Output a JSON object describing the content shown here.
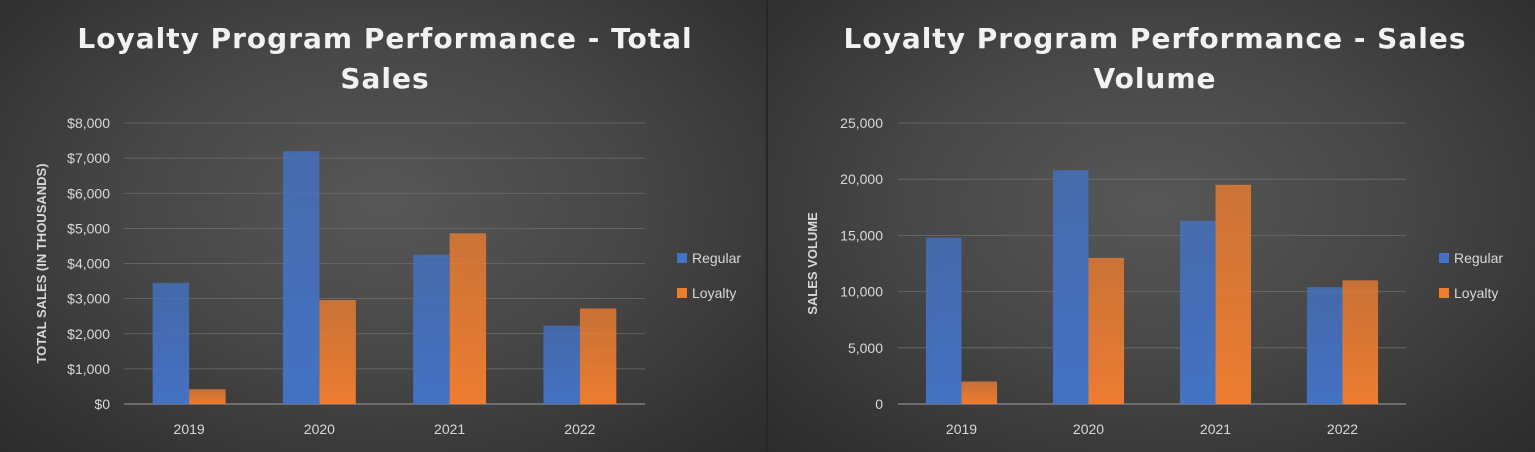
{
  "colors": {
    "regular": "#4472c4",
    "loyalty": "#ed7d31",
    "grid": "#6e6e6e",
    "text": "#d9d9d9"
  },
  "chart_data": [
    {
      "type": "bar",
      "title_lines": [
        "Loyalty Program Performance - Total",
        "Sales"
      ],
      "ylabel": "TOTAL SALES (IN THOUSANDS)",
      "xlabel": "",
      "categories": [
        "2019",
        "2020",
        "2021",
        "2022"
      ],
      "series": [
        {
          "name": "Regular",
          "values": [
            3450,
            7200,
            4250,
            2230
          ]
        },
        {
          "name": "Loyalty",
          "values": [
            420,
            2960,
            4860,
            2720
          ]
        }
      ],
      "ylim": [
        0,
        8000
      ],
      "yticks": [
        0,
        1000,
        2000,
        3000,
        4000,
        5000,
        6000,
        7000,
        8000
      ],
      "ytick_labels": [
        "$0",
        "$1,000",
        "$2,000",
        "$3,000",
        "$4,000",
        "$5,000",
        "$6,000",
        "$7,000",
        "$8,000"
      ],
      "grid": true,
      "legend": "right"
    },
    {
      "type": "bar",
      "title_lines": [
        "Loyalty Program Performance - Sales",
        "Volume"
      ],
      "ylabel": "SALES VOLUME",
      "xlabel": "",
      "categories": [
        "2019",
        "2020",
        "2021",
        "2022"
      ],
      "series": [
        {
          "name": "Regular",
          "values": [
            14800,
            20800,
            16300,
            10400
          ]
        },
        {
          "name": "Loyalty",
          "values": [
            2000,
            13000,
            19500,
            11000
          ]
        }
      ],
      "ylim": [
        0,
        25000
      ],
      "yticks": [
        0,
        5000,
        10000,
        15000,
        20000,
        25000
      ],
      "ytick_labels": [
        "0",
        "5,000",
        "10,000",
        "15,000",
        "20,000",
        "25,000"
      ],
      "grid": true,
      "legend": "right"
    }
  ]
}
